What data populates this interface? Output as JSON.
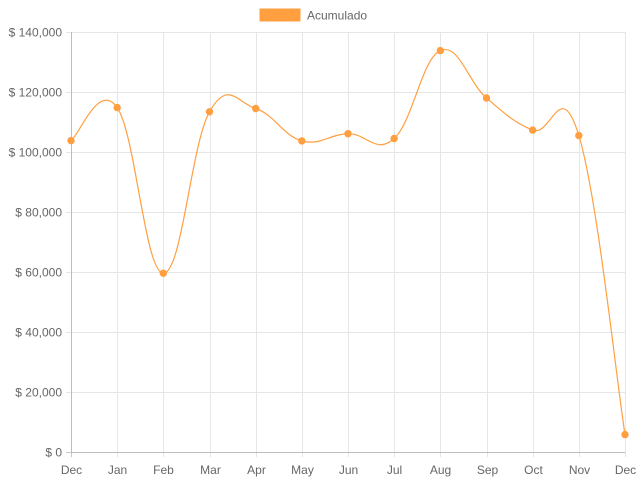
{
  "chart_data": {
    "type": "line",
    "categories": [
      "Dec",
      "Jan",
      "Feb",
      "Mar",
      "Apr",
      "May",
      "Jun",
      "Jul",
      "Aug",
      "Sep",
      "Oct",
      "Nov",
      "Dec"
    ],
    "series": [
      {
        "name": "Acumulado",
        "color": "#ff9f40",
        "values": [
          103800,
          114800,
          59600,
          113400,
          114500,
          103700,
          106100,
          104500,
          133800,
          118000,
          107300,
          105500,
          5800
        ]
      }
    ],
    "y_ticks": [
      "$ 0",
      "$ 20,000",
      "$ 40,000",
      "$ 60,000",
      "$ 80,000",
      "$ 100,000",
      "$ 120,000",
      "$ 140,000"
    ],
    "ylim": [
      0,
      140000
    ],
    "y_step": 20000,
    "grid": true,
    "smooth": true,
    "legend_position": "top-center",
    "title": "",
    "xlabel": "",
    "ylabel": ""
  }
}
